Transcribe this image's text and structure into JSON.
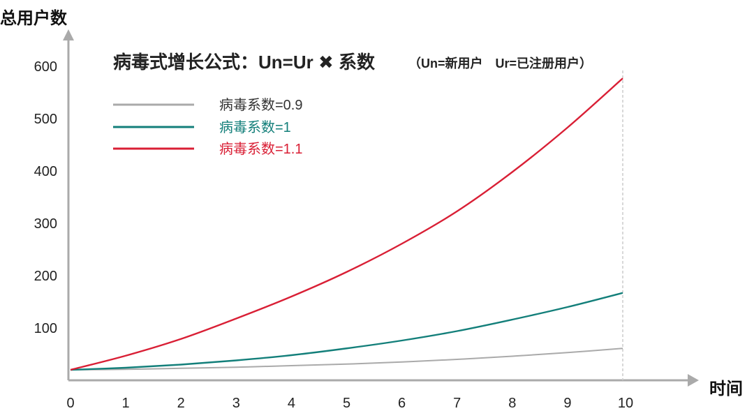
{
  "chart_data": {
    "type": "line",
    "title": "病毒式增长公式：Un=Ur ✖ 系数",
    "subtitle": "（Un=新用户　Ur=已注册用户）",
    "xlabel": "时间",
    "ylabel": "总用户数",
    "xlim": [
      0,
      10
    ],
    "ylim": [
      0,
      600
    ],
    "x_ticks": [
      "0",
      "1",
      "2",
      "3",
      "4",
      "5",
      "6",
      "7",
      "8",
      "9",
      "10"
    ],
    "y_ticks": [
      "100",
      "200",
      "300",
      "400",
      "500",
      "600"
    ],
    "grid": false,
    "legend_position": "top-left",
    "x": [
      0,
      1,
      2,
      3,
      4,
      5,
      6,
      7,
      8,
      9,
      10
    ],
    "series": [
      {
        "name": "病毒系数=0.9",
        "color": "#aaaaaa",
        "values": [
          20,
          21,
          23,
          25,
          28,
          31,
          35,
          40,
          46,
          53,
          61
        ]
      },
      {
        "name": "病毒系数=1",
        "color": "#137f7a",
        "values": [
          20,
          24,
          30,
          38,
          48,
          61,
          76,
          94,
          116,
          140,
          167
        ]
      },
      {
        "name": "病毒系数=1.1",
        "color": "#d91f35",
        "values": [
          20,
          47,
          79,
          118,
          160,
          207,
          261,
          323,
          398,
          483,
          577
        ]
      }
    ]
  }
}
